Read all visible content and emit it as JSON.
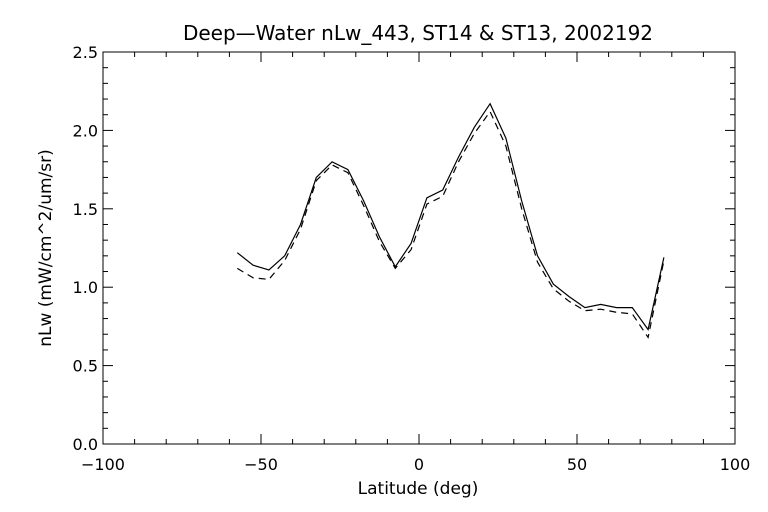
{
  "chart_data": {
    "type": "line",
    "title": "Deep—Water nLw_443, ST14 & ST13, 2002192",
    "xlabel": "Latitude (deg)",
    "ylabel": "nLw (mW/cm^2/um/sr)",
    "xlim": [
      -100,
      100
    ],
    "ylim": [
      0.0,
      2.5
    ],
    "xticks": [
      -100,
      -50,
      0,
      50,
      100
    ],
    "xtick_labels": [
      "−100",
      "−50",
      "0",
      "50",
      "100"
    ],
    "yticks": [
      0.0,
      0.5,
      1.0,
      1.5,
      2.0,
      2.5
    ],
    "ytick_labels": [
      "0.0",
      "0.5",
      "1.0",
      "1.5",
      "2.0",
      "2.5"
    ],
    "grid": false,
    "series": [
      {
        "style": "solid",
        "color": "#000000",
        "x": [
          -57.5,
          -52.5,
          -47.5,
          -42.5,
          -37.5,
          -32.5,
          -27.5,
          -22.5,
          -17.5,
          -12.5,
          -7.5,
          -2.5,
          2.5,
          7.5,
          12.5,
          17.5,
          22.5,
          27.5,
          32.5,
          37.5,
          42.5,
          47.5,
          52.5,
          57.5,
          62.5,
          67.5,
          72.5,
          77.5
        ],
        "y": [
          1.22,
          1.14,
          1.11,
          1.2,
          1.4,
          1.7,
          1.8,
          1.75,
          1.55,
          1.32,
          1.13,
          1.28,
          1.57,
          1.62,
          1.83,
          2.02,
          2.17,
          1.95,
          1.55,
          1.2,
          1.02,
          0.94,
          0.87,
          0.89,
          0.87,
          0.87,
          0.73,
          1.19
        ]
      },
      {
        "style": "dashed",
        "color": "#000000",
        "x": [
          -57.5,
          -52.5,
          -47.5,
          -42.5,
          -37.5,
          -32.5,
          -27.5,
          -22.5,
          -17.5,
          -12.5,
          -7.5,
          -2.5,
          2.5,
          7.5,
          12.5,
          17.5,
          22.5,
          27.5,
          32.5,
          37.5,
          42.5,
          47.5,
          52.5,
          57.5,
          62.5,
          67.5,
          72.5,
          77.5
        ],
        "y": [
          1.12,
          1.06,
          1.05,
          1.17,
          1.37,
          1.68,
          1.78,
          1.73,
          1.52,
          1.29,
          1.12,
          1.24,
          1.53,
          1.58,
          1.8,
          1.98,
          2.12,
          1.9,
          1.5,
          1.16,
          0.99,
          0.91,
          0.85,
          0.86,
          0.84,
          0.83,
          0.68,
          1.17
        ]
      }
    ]
  }
}
